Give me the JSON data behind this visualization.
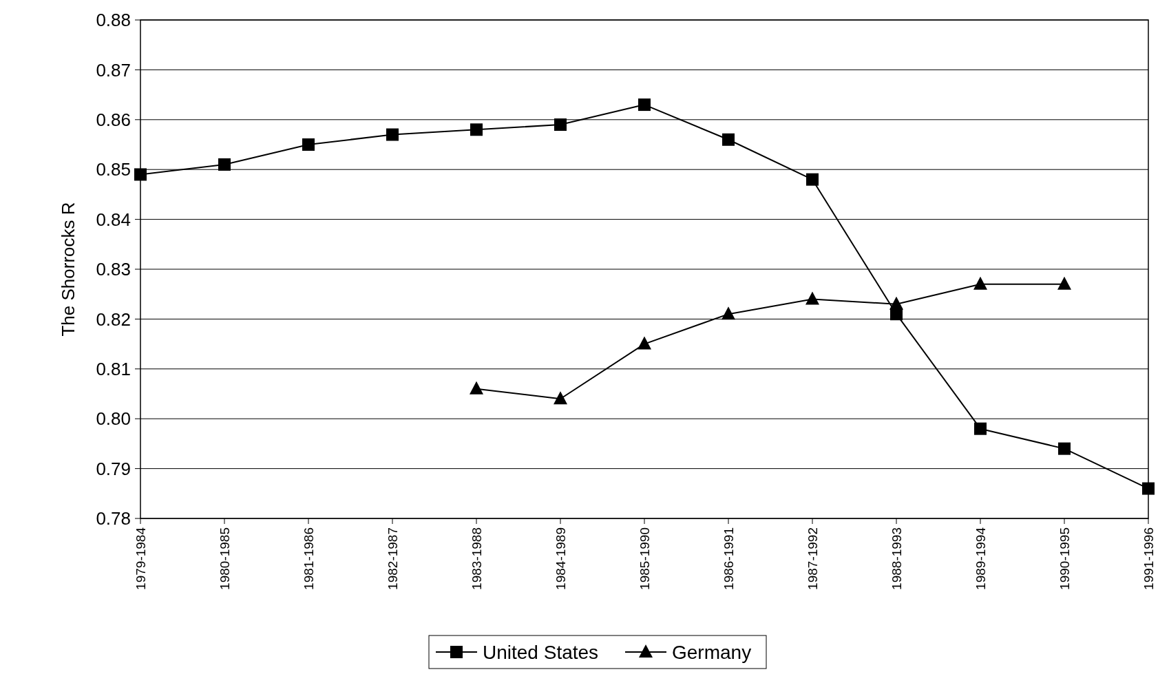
{
  "chart_data": {
    "type": "line",
    "ylabel": "The Shorrocks R",
    "categories": [
      "1979-1984",
      "1980-1985",
      "1981-1986",
      "1982-1987",
      "1983-1988",
      "1984-1989",
      "1985-1990",
      "1986-1991",
      "1987-1992",
      "1988-1993",
      "1989-1994",
      "1990-1995",
      "1991-1996"
    ],
    "series": [
      {
        "name": "United States",
        "color": "#000000",
        "marker": "square",
        "values": [
          0.849,
          0.851,
          0.855,
          0.857,
          0.858,
          0.859,
          0.863,
          0.856,
          0.848,
          0.821,
          0.798,
          0.794,
          0.786
        ]
      },
      {
        "name": "Germany",
        "color": "#000000",
        "marker": "triangle",
        "values": [
          null,
          null,
          null,
          null,
          0.806,
          0.804,
          0.815,
          0.821,
          0.824,
          0.823,
          0.827,
          0.827,
          null
        ]
      }
    ],
    "ylim": [
      0.78,
      0.88
    ],
    "yticks": [
      {
        "value": 0.78,
        "label": "0.78"
      },
      {
        "value": 0.79,
        "label": "0.79"
      },
      {
        "value": 0.8,
        "label": "0.80"
      },
      {
        "value": 0.81,
        "label": "0.81"
      },
      {
        "value": 0.82,
        "label": "0.82"
      },
      {
        "value": 0.83,
        "label": "0.83"
      },
      {
        "value": 0.84,
        "label": "0.84"
      },
      {
        "value": 0.85,
        "label": "0.85"
      },
      {
        "value": 0.86,
        "label": "0.86"
      },
      {
        "value": 0.87,
        "label": "0.87"
      },
      {
        "value": 0.88,
        "label": "0.88"
      }
    ],
    "grid": "y",
    "legend": "bottom",
    "line_style": "solid"
  }
}
